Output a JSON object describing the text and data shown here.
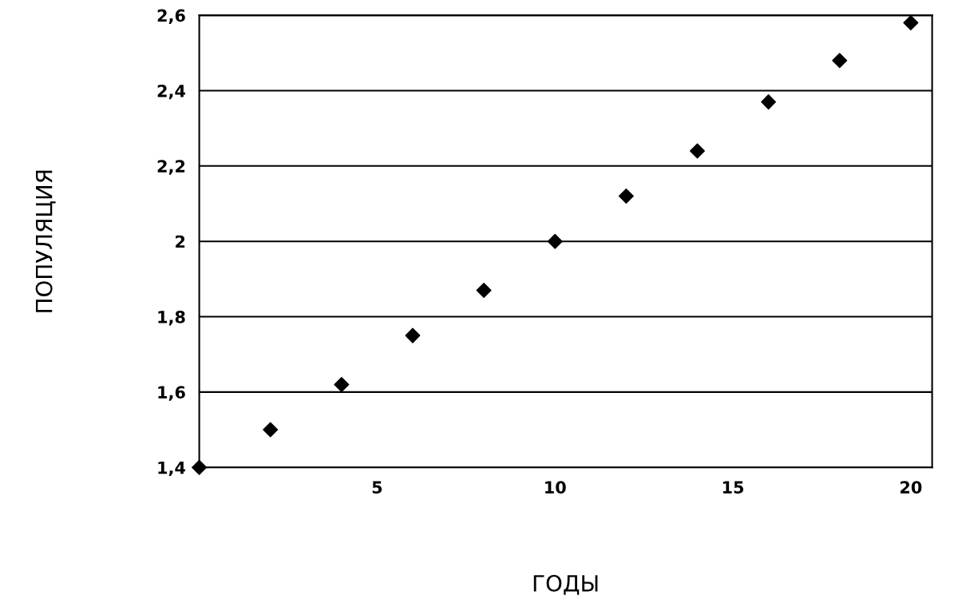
{
  "chart_data": {
    "type": "scatter",
    "xlabel": "ГОДЫ",
    "ylabel": "ПОПУЛЯЦИЯ",
    "x": [
      0,
      2,
      4,
      6,
      8,
      10,
      12,
      14,
      16,
      18,
      20
    ],
    "series": [
      {
        "color": "#000000",
        "values": [
          1.4,
          1.5,
          1.62,
          1.75,
          1.87,
          2.0,
          2.12,
          2.24,
          2.37,
          2.48,
          2.58
        ]
      }
    ],
    "xlim": [
      0,
      20.6
    ],
    "xticks": [
      5,
      10,
      15,
      20
    ],
    "ylim": [
      1.4,
      2.6
    ],
    "yticks": [
      {
        "value": 1.4,
        "label": "1,4"
      },
      {
        "value": 1.6,
        "label": "1,6"
      },
      {
        "value": 1.8,
        "label": "1,8"
      },
      {
        "value": 2,
        "label": "2"
      },
      {
        "value": 2.2,
        "label": "2,2"
      },
      {
        "value": 2.4,
        "label": "2,4"
      },
      {
        "value": 2.6,
        "label": "2,6"
      }
    ],
    "grid": "y",
    "marker": "diamond"
  }
}
